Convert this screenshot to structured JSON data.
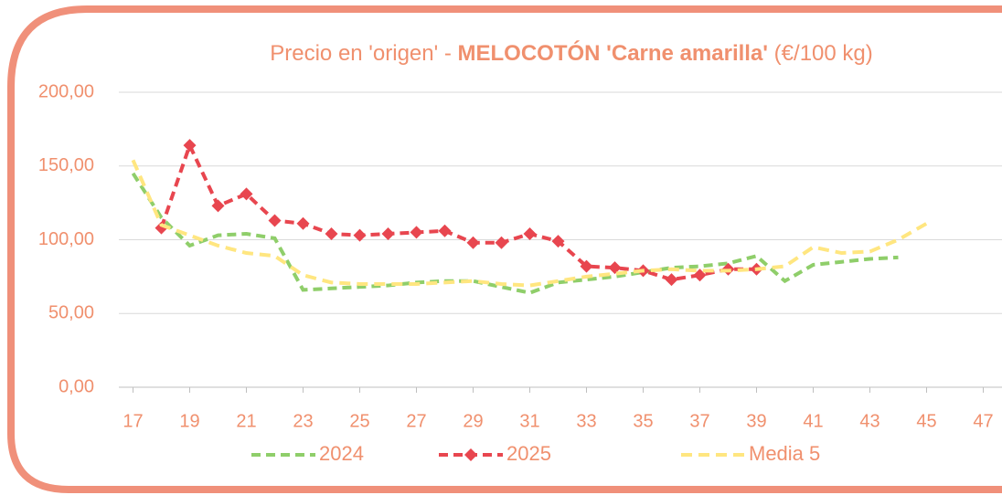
{
  "chart_data": {
    "type": "line",
    "title": [
      "Precio en 'origen' - ",
      "MELOCOTÓN 'Carne amarilla'",
      " (€/100 kg)"
    ],
    "x": [
      17,
      18,
      19,
      20,
      21,
      22,
      23,
      24,
      25,
      26,
      27,
      28,
      29,
      30,
      31,
      32,
      33,
      34,
      35,
      36,
      37,
      38,
      39,
      40,
      41,
      42,
      43,
      44,
      45
    ],
    "series": [
      {
        "name": "2024",
        "color": "#8fce6a",
        "values": [
          145,
          115,
          96,
          103,
          104,
          101,
          66,
          67,
          68,
          69,
          71,
          72,
          72,
          68,
          64,
          71,
          73,
          75,
          78,
          81,
          82,
          84,
          89,
          72,
          83,
          85,
          87,
          88,
          null
        ]
      },
      {
        "name": "2025",
        "color": "#e8464f",
        "values": [
          null,
          108,
          164,
          123,
          131,
          113,
          111,
          104,
          103,
          104,
          105,
          106,
          98,
          98,
          104,
          99,
          82,
          81,
          79,
          73,
          76,
          80,
          80,
          null,
          null,
          null,
          null,
          null,
          null
        ]
      },
      {
        "name": "Media 5",
        "color": "#ffe680",
        "values": [
          154,
          110,
          103,
          96,
          91,
          89,
          76,
          71,
          70,
          70,
          70,
          71,
          72,
          70,
          69,
          72,
          75,
          77,
          79,
          80,
          79,
          79,
          80,
          82,
          95,
          91,
          92,
          100,
          111
        ]
      }
    ],
    "xlim": [
      16.5,
      47.5
    ],
    "xticks": [
      17,
      19,
      21,
      23,
      25,
      27,
      29,
      31,
      33,
      35,
      37,
      39,
      41,
      43,
      45,
      47
    ],
    "ylim": [
      0,
      200
    ],
    "yticks": [
      {
        "value": 0,
        "label": "0,00"
      },
      {
        "value": 50,
        "label": "50,00"
      },
      {
        "value": 100,
        "label": "100,00"
      },
      {
        "value": 150,
        "label": "150,00"
      },
      {
        "value": 200,
        "label": "200,00"
      }
    ],
    "grid": true,
    "legend": "bottom"
  }
}
